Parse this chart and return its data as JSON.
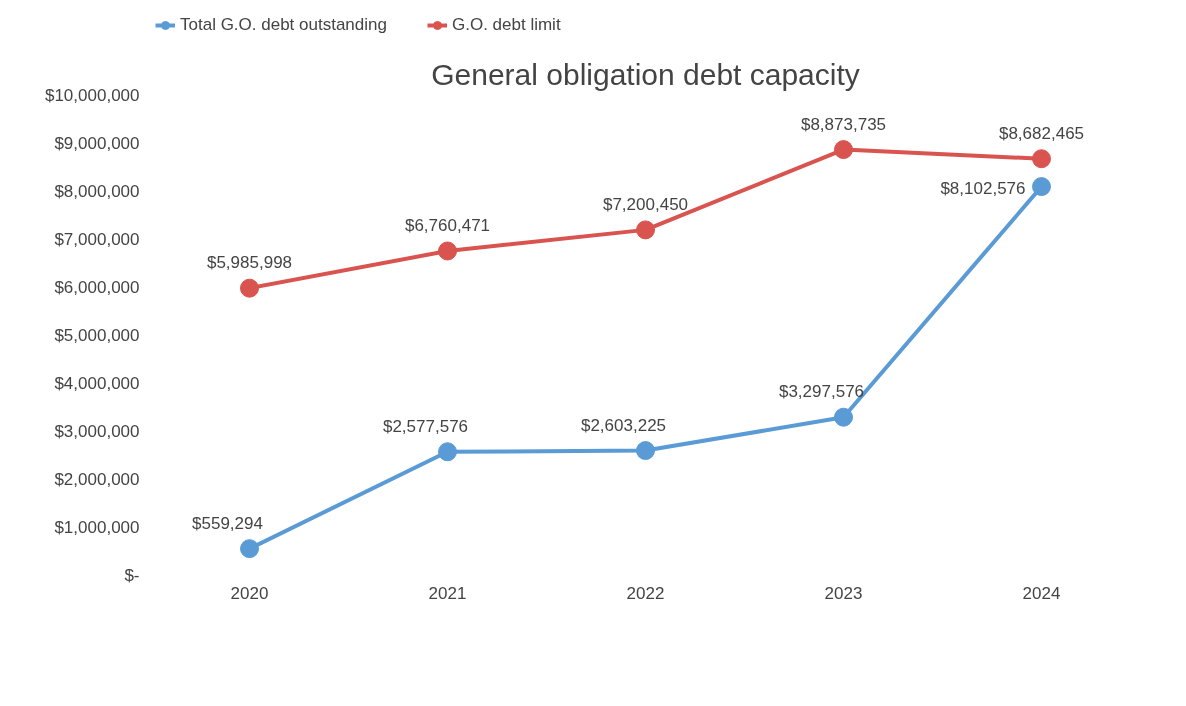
{
  "chart_data": {
    "type": "line",
    "title": "General obligation debt capacity",
    "categories": [
      "2020",
      "2021",
      "2022",
      "2023",
      "2024"
    ],
    "series": [
      {
        "name": "Total G.O. debt outstanding",
        "color": "#5b9bd5",
        "values": [
          559294,
          2577576,
          2603225,
          3297576,
          8102576
        ],
        "value_labels": [
          "$559,294",
          "$2,577,576",
          "$2,603,225",
          "$3,297,576",
          "$8,102,576"
        ]
      },
      {
        "name": "G.O. debt limit",
        "color": "#d9534f",
        "values": [
          5985998,
          6760471,
          7200450,
          8873735,
          8682465
        ],
        "value_labels": [
          "$5,985,998",
          "$6,760,471",
          "$7,200,450",
          "$8,873,735",
          "$8,682,465"
        ]
      }
    ],
    "ylim": [
      0,
      10000000
    ],
    "yticks": [
      {
        "value": 0,
        "label": "$-"
      },
      {
        "value": 1000000,
        "label": "$1,000,000"
      },
      {
        "value": 2000000,
        "label": "$2,000,000"
      },
      {
        "value": 3000000,
        "label": "$3,000,000"
      },
      {
        "value": 4000000,
        "label": "$4,000,000"
      },
      {
        "value": 5000000,
        "label": "$5,000,000"
      },
      {
        "value": 6000000,
        "label": "$6,000,000"
      },
      {
        "value": 7000000,
        "label": "$7,000,000"
      },
      {
        "value": 8000000,
        "label": "$8,000,000"
      },
      {
        "value": 9000000,
        "label": "$9,000,000"
      },
      {
        "value": 10000000,
        "label": "$10,000,000"
      }
    ],
    "legend": "top left",
    "marker": "circle",
    "grid": false
  }
}
